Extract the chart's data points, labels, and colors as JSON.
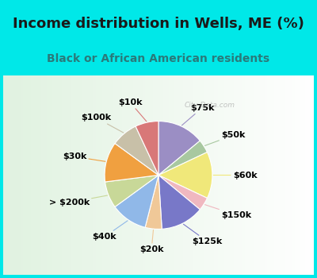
{
  "title": "Income distribution in Wells, ME (%)",
  "subtitle": "Black or African American residents",
  "watermark": "City-Data.com",
  "bg_cyan": "#00e8e8",
  "bg_chart": "#f0f8f0",
  "labels": [
    "$75k",
    "$50k",
    "$60k",
    "$150k",
    "$125k",
    "$20k",
    "$40k",
    "> $200k",
    "$30k",
    "$100k",
    "$10k"
  ],
  "values": [
    14,
    4,
    14,
    4,
    13,
    5,
    11,
    8,
    12,
    8,
    7
  ],
  "colors": [
    "#9b8ec4",
    "#a8c8a0",
    "#f0e87a",
    "#f0b8c0",
    "#7878c8",
    "#f0c898",
    "#90b8e8",
    "#c8d898",
    "#f0a040",
    "#c8c0a8",
    "#d87878"
  ],
  "title_fontsize": 13,
  "subtitle_fontsize": 10,
  "label_fontsize": 8,
  "figsize": [
    4.0,
    3.5
  ],
  "dpi": 100
}
